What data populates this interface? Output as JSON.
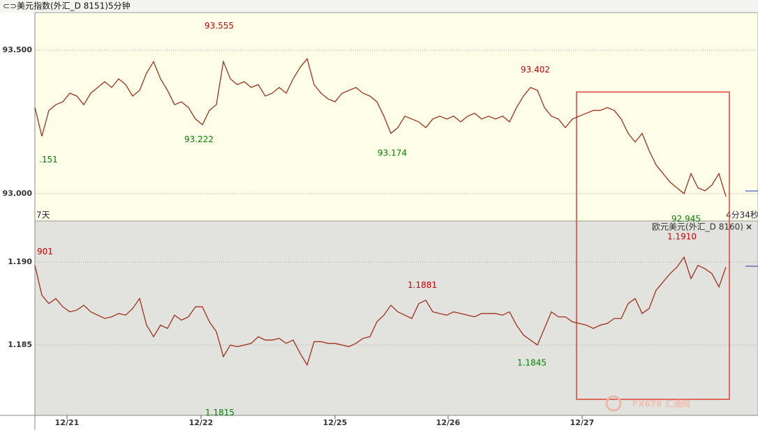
{
  "header": {
    "title": "美元指数(外汇_D 8151)5分钟",
    "watermark": "FX678 汇通网"
  },
  "chart_data": [
    {
      "type": "line",
      "range_label": "7天",
      "countdown": "4分34秒",
      "color": "#a0301a",
      "xlim": [
        0,
        99
      ],
      "ylim": [
        92.905,
        93.631
      ],
      "yticks": [
        {
          "value": 93.0,
          "label": "93.000"
        },
        {
          "value": 93.5,
          "label": "93.500"
        }
      ],
      "grid": true,
      "values": [
        93.3,
        93.2,
        93.29,
        93.31,
        93.32,
        93.35,
        93.34,
        93.31,
        93.35,
        93.37,
        93.39,
        93.37,
        93.4,
        93.38,
        93.34,
        93.36,
        93.42,
        93.46,
        93.4,
        93.36,
        93.31,
        93.32,
        93.3,
        93.26,
        93.24,
        93.29,
        93.31,
        93.46,
        93.4,
        93.38,
        93.39,
        93.37,
        93.38,
        93.34,
        93.35,
        93.37,
        93.35,
        93.4,
        93.44,
        93.47,
        93.38,
        93.35,
        93.33,
        93.32,
        93.35,
        93.36,
        93.37,
        93.35,
        93.34,
        93.32,
        93.27,
        93.21,
        93.23,
        93.27,
        93.26,
        93.25,
        93.23,
        93.26,
        93.27,
        93.26,
        93.27,
        93.25,
        93.27,
        93.28,
        93.26,
        93.27,
        93.26,
        93.27,
        93.25,
        93.3,
        93.34,
        93.37,
        93.36,
        93.3,
        93.27,
        93.26,
        93.23,
        93.26,
        93.27,
        93.28,
        93.29,
        93.29,
        93.3,
        93.29,
        93.26,
        93.21,
        93.18,
        93.21,
        93.15,
        93.1,
        93.07,
        93.04,
        93.02,
        93.0,
        93.07,
        93.02,
        93.01,
        93.03,
        93.07,
        92.99
      ],
      "annotations": [
        {
          "label": ".151",
          "x": 0.6,
          "y": 93.151,
          "color": "#008000",
          "pos": "below"
        },
        {
          "label": "93.222",
          "x": 23.5,
          "y": 93.222,
          "color": "#008000",
          "pos": "below"
        },
        {
          "label": "93.555",
          "x": 26.4,
          "y": 93.555,
          "color": "#cc0000",
          "pos": "above"
        },
        {
          "label": "93.174",
          "x": 51.2,
          "y": 93.174,
          "color": "#008000",
          "pos": "below"
        },
        {
          "label": "93.402",
          "x": 71.7,
          "y": 93.402,
          "color": "#cc0000",
          "pos": "above"
        },
        {
          "label": "92.945",
          "x": 93.3,
          "y": 92.945,
          "color": "#008000",
          "pos": "below"
        }
      ]
    },
    {
      "type": "line",
      "title": "欧元美元(外汇_D 8160)",
      "color": "#a0301a",
      "xlim": [
        0,
        99
      ],
      "ylim": [
        1.18076,
        1.19248
      ],
      "yticks": [
        1.185,
        {
          "value": 1.19,
          "label": "1.190"
        }
      ],
      "xticks": [
        {
          "value": 4.6,
          "label": "12/21"
        },
        {
          "value": 23.8,
          "label": "12/22"
        },
        {
          "value": 43,
          "label": "12/25"
        },
        {
          "value": 59.2,
          "label": "12/26"
        },
        {
          "value": 78.4,
          "label": "12/27"
        }
      ],
      "grid": true,
      "values": [
        1.1898,
        1.188,
        1.1875,
        1.1878,
        1.1873,
        1.187,
        1.1871,
        1.1874,
        1.187,
        1.1868,
        1.1866,
        1.1867,
        1.1869,
        1.1868,
        1.1872,
        1.1878,
        1.1862,
        1.1855,
        1.1862,
        1.186,
        1.1868,
        1.1865,
        1.1867,
        1.1873,
        1.1873,
        1.1864,
        1.1858,
        1.1843,
        1.185,
        1.1849,
        1.185,
        1.1851,
        1.1855,
        1.1853,
        1.1853,
        1.1854,
        1.1851,
        1.1853,
        1.1845,
        1.1838,
        1.1852,
        1.1852,
        1.1851,
        1.1851,
        1.185,
        1.1849,
        1.1851,
        1.1854,
        1.1855,
        1.1864,
        1.1868,
        1.1874,
        1.187,
        1.1868,
        1.1866,
        1.1875,
        1.1877,
        1.187,
        1.1869,
        1.1868,
        1.187,
        1.1869,
        1.1868,
        1.1867,
        1.1869,
        1.1869,
        1.1869,
        1.1868,
        1.187,
        1.1862,
        1.1856,
        1.1853,
        1.185,
        1.186,
        1.187,
        1.1867,
        1.1867,
        1.1864,
        1.1863,
        1.1862,
        1.186,
        1.1862,
        1.1863,
        1.1866,
        1.1866,
        1.1875,
        1.1878,
        1.1869,
        1.1872,
        1.1883,
        1.1888,
        1.1893,
        1.1897,
        1.1903,
        1.189,
        1.1898,
        1.1896,
        1.1893,
        1.1885,
        1.1897
      ],
      "annotations": [
        {
          "label": "901",
          "x": 0.3,
          "y": 1.1901,
          "color": "#cc0000",
          "pos": "above"
        },
        {
          "label": "1.1815",
          "x": 26.5,
          "y": 1.1815,
          "color": "#008000",
          "pos": "below"
        },
        {
          "label": "1.1881",
          "x": 55.5,
          "y": 1.1881,
          "color": "#cc0000",
          "pos": "above"
        },
        {
          "label": "1.1845",
          "x": 71.2,
          "y": 1.1845,
          "color": "#008000",
          "pos": "below"
        },
        {
          "label": "1.1910",
          "x": 92.7,
          "y": 1.191,
          "color": "#cc0000",
          "pos": "above"
        }
      ]
    }
  ]
}
